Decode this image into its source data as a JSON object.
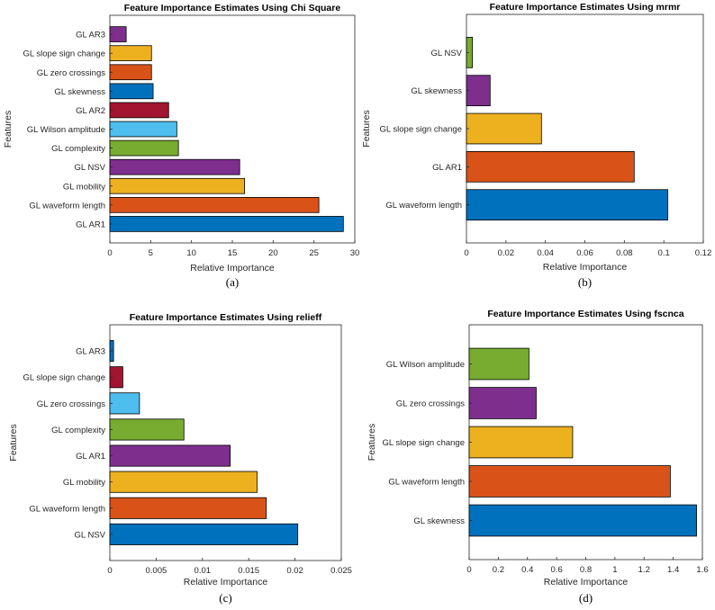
{
  "chart_data": [
    {
      "type": "bar",
      "orientation": "horizontal",
      "title": "Feature Importance Estimates Using Chi Square",
      "xlabel": "Relative Importance",
      "ylabel": "Features",
      "caption": "(a)",
      "categories": [
        "GL AR1",
        "GL waveform length",
        "GL mobility",
        "GL NSV",
        "GL complexity",
        "GL Wilson amplitude",
        "GL AR2",
        "GL skewness",
        "GL zero crossings",
        "GL slope sign change",
        "GL AR3"
      ],
      "values": [
        28.6,
        25.6,
        16.5,
        15.9,
        8.4,
        8.2,
        7.2,
        5.3,
        5.1,
        5.1,
        2.0
      ],
      "colors": [
        "#0072BD",
        "#D95319",
        "#EDB120",
        "#7E2F8E",
        "#77AC30",
        "#4DBEEE",
        "#A2142F",
        "#0072BD",
        "#D95319",
        "#EDB120",
        "#7E2F8E"
      ],
      "xlim": [
        0,
        30
      ],
      "xticks": [
        0,
        5,
        10,
        15,
        20,
        25,
        30
      ],
      "xtick_labels": [
        "0",
        "5",
        "10",
        "15",
        "20",
        "25",
        "30"
      ],
      "grid": false
    },
    {
      "type": "bar",
      "orientation": "horizontal",
      "title": "Feature Importance Estimates Using mrmr",
      "xlabel": "Relative Importance",
      "ylabel": "Features",
      "caption": "(b)",
      "categories": [
        "GL waveform length",
        "GL AR1",
        "GL slope sign change",
        "GL skewness",
        "GL NSV"
      ],
      "values": [
        0.102,
        0.085,
        0.038,
        0.012,
        0.003
      ],
      "colors": [
        "#0072BD",
        "#D95319",
        "#EDB120",
        "#7E2F8E",
        "#77AC30"
      ],
      "xlim": [
        0,
        0.12
      ],
      "xticks": [
        0,
        0.02,
        0.04,
        0.06,
        0.08,
        0.1,
        0.12
      ],
      "xtick_labels": [
        "0",
        "0.02",
        "0.04",
        "0.06",
        "0.08",
        "0.1",
        "0.12"
      ],
      "grid": false
    },
    {
      "type": "bar",
      "orientation": "horizontal",
      "title": "Feature Importance Estimates Using relieff",
      "xlabel": "Relative Importance",
      "ylabel": "Features",
      "caption": "(c)",
      "categories": [
        "GL NSV",
        "GL waveform length",
        "GL mobility",
        "GL AR1",
        "GL complexity",
        "GL zero crossings",
        "GL slope sign change",
        "GL AR3"
      ],
      "values": [
        0.0203,
        0.0169,
        0.0159,
        0.013,
        0.008,
        0.0032,
        0.0014,
        0.0004
      ],
      "colors": [
        "#0072BD",
        "#D95319",
        "#EDB120",
        "#7E2F8E",
        "#77AC30",
        "#4DBEEE",
        "#A2142F",
        "#0072BD"
      ],
      "xlim": [
        0,
        0.025
      ],
      "xticks": [
        0,
        0.005,
        0.01,
        0.015,
        0.02,
        0.025
      ],
      "xtick_labels": [
        "0",
        "0.005",
        "0.01",
        "0.015",
        "0.02",
        "0.025"
      ],
      "grid": false
    },
    {
      "type": "bar",
      "orientation": "horizontal",
      "title": "Feature Importance Estimates Using fscnca",
      "xlabel": "Relative Importance",
      "ylabel": "Features",
      "caption": "(d)",
      "categories": [
        "GL skewness",
        "GL waveform length",
        "GL slope sign change",
        "GL zero crossings",
        "GL Wilson amplitude"
      ],
      "values": [
        1.56,
        1.38,
        0.71,
        0.46,
        0.41
      ],
      "colors": [
        "#0072BD",
        "#D95319",
        "#EDB120",
        "#7E2F8E",
        "#77AC30"
      ],
      "xlim": [
        0,
        1.6
      ],
      "xticks": [
        0,
        0.2,
        0.4,
        0.6,
        0.8,
        1,
        1.2,
        1.4,
        1.6
      ],
      "xtick_labels": [
        "0",
        "0.2",
        "0.4",
        "0.6",
        "0.8",
        "1",
        "1.2",
        "1.4",
        "1.6"
      ],
      "grid": false
    }
  ]
}
